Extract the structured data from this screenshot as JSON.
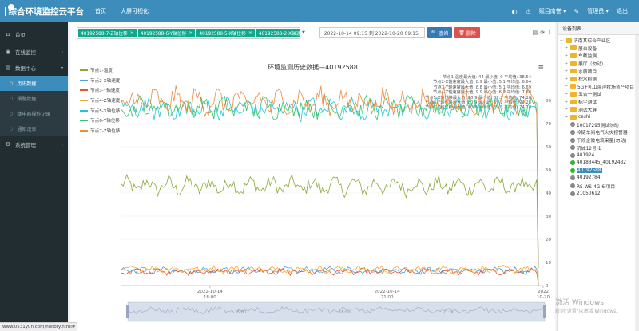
{
  "app": {
    "title": "综合环境监控云平台"
  },
  "nav": [
    "首页",
    "大屏可视化"
  ],
  "topright": {
    "org": "赋目南誉",
    "user": "管理员",
    "logout": "退出"
  },
  "sidebar": [
    {
      "label": "首页",
      "icon": "home-icon"
    },
    {
      "label": "在线监控",
      "icon": "monitor-icon"
    },
    {
      "label": "数据中心",
      "icon": "database-icon"
    },
    {
      "label": "历史数据",
      "sub": true,
      "active": true
    },
    {
      "label": "报警数据",
      "sub": true
    },
    {
      "label": "继电器操作记录",
      "sub": true
    },
    {
      "label": "通知记录",
      "sub": true
    },
    {
      "label": "系统管理",
      "icon": "gear-icon"
    }
  ],
  "filters": {
    "tags": [
      "40192588-7-Z轴位移",
      "40192588-6-Y轴位移",
      "40192588-5-X轴位移",
      "40192588-2-X轴速度"
    ],
    "date_range": "2022-10-14 09:15 到 2022-10-20 09:15",
    "query_label": "查询",
    "delete_label": "删除"
  },
  "chart_data": {
    "type": "line",
    "title": "环境监测历史数据—40192588",
    "series": [
      {
        "name": "节点1-温度",
        "color": "#8aa83a",
        "level": 43,
        "amp": 3.5
      },
      {
        "name": "节点2-X轴速度",
        "color": "#4aa3df",
        "level": 6.5,
        "amp": 1.3
      },
      {
        "name": "节点3-Y轴速度",
        "color": "#e8542c",
        "level": 6.0,
        "amp": 1.2
      },
      {
        "name": "节点4-Z轴速度",
        "color": "#f2a93b",
        "level": 7.0,
        "amp": 1.3
      },
      {
        "name": "节点5-X轴位移",
        "color": "#21c5d8",
        "level": 76.5,
        "amp": 4
      },
      {
        "name": "节点6-Y轴位移",
        "color": "#36c36d",
        "level": 77.0,
        "amp": 4
      },
      {
        "name": "节点7-Z轴位移",
        "color": "#f08a3c",
        "level": 79.5,
        "amp": 5
      }
    ],
    "stats": [
      "节点1-温度最大值: 44 最小值: 0 平均值: 38.54",
      "节点2-X轴速度最大值: 8.9 最小值: 5.1 平均值: 6.64",
      "节点3-Y轴速度最大值: 8.8 最小值: 5.1 平均值: 6.69",
      "节点4-Z轴速度最大值: 9.9 最小值: 6.1 平均值: 7.68",
      "节点5-X轴位移最大值: 80.9 最小值: 69.2 平均值: 74.10",
      "节点6-Y轴位移最大值: 80.9 最小值: 69.1 平均值: 74.28",
      "节点7-Z轴位移最大值: 80.8 最小值: 69.1 平均值: 74.10"
    ],
    "y_ticks": [
      0,
      10,
      20,
      30,
      40,
      50,
      60,
      70,
      80
    ],
    "x_ticks": [
      {
        "date": "2022-10-14",
        "time": "18:00",
        "pos": 0.21
      },
      {
        "date": "2022-10-14",
        "time": "21:00",
        "pos": 0.63
      },
      {
        "date": "2022",
        "time": "10-20",
        "pos": 1.0
      }
    ],
    "slider_labels": [
      "15:00",
      "18:00",
      "21:00"
    ],
    "legend_position": "left",
    "ylim": [
      0,
      90
    ]
  },
  "device_panel": {
    "title": "设备列表",
    "tree": [
      {
        "label": "济南某综合产业区",
        "type": "folder",
        "level": 0,
        "exp": "−"
      },
      {
        "label": "展台设备",
        "type": "folder",
        "level": 1
      },
      {
        "label": "车载监测",
        "type": "folder",
        "level": 1
      },
      {
        "label": "展厅（勿动）",
        "type": "folder",
        "level": 1
      },
      {
        "label": "水质项目",
        "type": "folder",
        "level": 1
      },
      {
        "label": "积水检测",
        "type": "folder",
        "level": 1
      },
      {
        "label": "5G+乳山海洋牧场育产项目",
        "type": "folder",
        "level": 1
      },
      {
        "label": "五合一测试",
        "type": "folder",
        "level": 1
      },
      {
        "label": "标尘测试",
        "type": "folder",
        "level": 1
      },
      {
        "label": "测试大屏",
        "type": "folder",
        "level": 1
      },
      {
        "label": "ceshi",
        "type": "folder",
        "level": 1
      },
      {
        "label": "10017295测试勿动",
        "type": "device",
        "level": 1
      },
      {
        "label": "冷链车间电气火灾报警器",
        "type": "device",
        "level": 1
      },
      {
        "label": "千修企微电流采量(勿动)",
        "type": "device",
        "level": 1
      },
      {
        "label": "济城12号-1",
        "type": "device",
        "level": 1
      },
      {
        "label": "401924",
        "type": "device",
        "level": 1
      },
      {
        "label": "40183445_40192482",
        "type": "device",
        "level": 1,
        "status": "online"
      },
      {
        "label": "40192588",
        "type": "device",
        "level": 1,
        "status": "online",
        "selected": true
      },
      {
        "label": "40192784",
        "type": "device",
        "level": 1
      },
      {
        "label": "RS-WS-4G-6l项目",
        "type": "device",
        "level": 1
      },
      {
        "label": "21050612",
        "type": "device",
        "level": 1
      }
    ]
  },
  "watermark": {
    "line1": "激活 Windows",
    "line2": "转到\"设置\"以激活 Windows。"
  },
  "status_url": "www.0531yun.com/history.html#"
}
